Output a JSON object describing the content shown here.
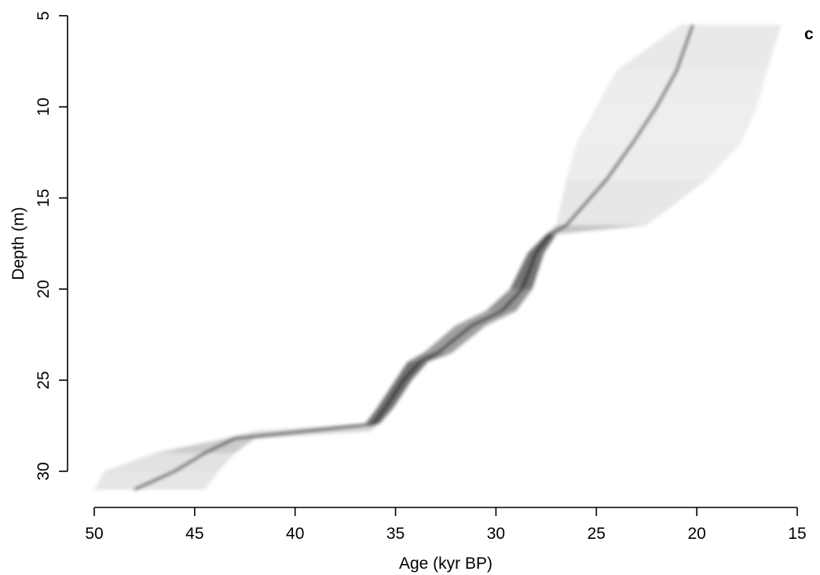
{
  "chart_data": {
    "type": "area",
    "panel_label": "c",
    "xlabel": "Age (kyr BP)",
    "ylabel": "Depth (m)",
    "xlim": [
      50,
      15
    ],
    "ylim": [
      5,
      31
    ],
    "x_ticks": [
      50,
      45,
      40,
      35,
      30,
      25,
      20,
      15
    ],
    "y_ticks": [
      5,
      10,
      15,
      20,
      25,
      30
    ],
    "x_reversed": true,
    "y_reversed": true,
    "grid": false,
    "colors": {
      "shade": "#000000",
      "axis": "#000000"
    },
    "series": [
      {
        "kind": "age-depth probability envelope (grey-scale density)",
        "points": [
          {
            "depth": 5.5,
            "age_min": 15.8,
            "age_median": 20.2,
            "age_max": 20.8
          },
          {
            "depth": 8,
            "age_min": 16.5,
            "age_median": 21.0,
            "age_max": 24.0
          },
          {
            "depth": 10,
            "age_min": 17.0,
            "age_median": 22.0,
            "age_max": 25.0
          },
          {
            "depth": 12,
            "age_min": 17.8,
            "age_median": 23.2,
            "age_max": 26.0
          },
          {
            "depth": 14,
            "age_min": 19.5,
            "age_median": 24.5,
            "age_max": 26.5
          },
          {
            "depth": 16.5,
            "age_min": 22.5,
            "age_median": 26.5,
            "age_max": 27.0
          },
          {
            "depth": 17,
            "age_min": 27.0,
            "age_median": 27.3,
            "age_max": 27.5
          },
          {
            "depth": 18,
            "age_min": 27.6,
            "age_median": 28.0,
            "age_max": 28.4
          },
          {
            "depth": 20,
            "age_min": 28.2,
            "age_median": 28.7,
            "age_max": 29.3
          },
          {
            "depth": 21.2,
            "age_min": 29.0,
            "age_median": 29.7,
            "age_max": 30.5
          },
          {
            "depth": 22,
            "age_min": 30.5,
            "age_median": 31.2,
            "age_max": 32.0
          },
          {
            "depth": 23.5,
            "age_min": 32.2,
            "age_median": 32.9,
            "age_max": 33.6
          },
          {
            "depth": 24,
            "age_min": 33.4,
            "age_median": 33.8,
            "age_max": 34.4
          },
          {
            "depth": 25,
            "age_min": 34.2,
            "age_median": 34.6,
            "age_max": 35.0
          },
          {
            "depth": 26.5,
            "age_min": 35.1,
            "age_median": 35.5,
            "age_max": 35.9
          },
          {
            "depth": 27.4,
            "age_min": 35.8,
            "age_median": 36.1,
            "age_max": 36.5
          },
          {
            "depth": 27.8,
            "age_min": 36.3,
            "age_median": 39.5,
            "age_max": 42.0
          },
          {
            "depth": 28.2,
            "age_min": 42.0,
            "age_median": 43.0,
            "age_max": 43.5
          },
          {
            "depth": 29,
            "age_min": 43.0,
            "age_median": 44.5,
            "age_max": 47.0
          },
          {
            "depth": 30,
            "age_min": 43.8,
            "age_median": 46.0,
            "age_max": 49.5
          },
          {
            "depth": 31,
            "age_min": 44.5,
            "age_median": 48.0,
            "age_max": 50.0
          }
        ]
      }
    ]
  }
}
